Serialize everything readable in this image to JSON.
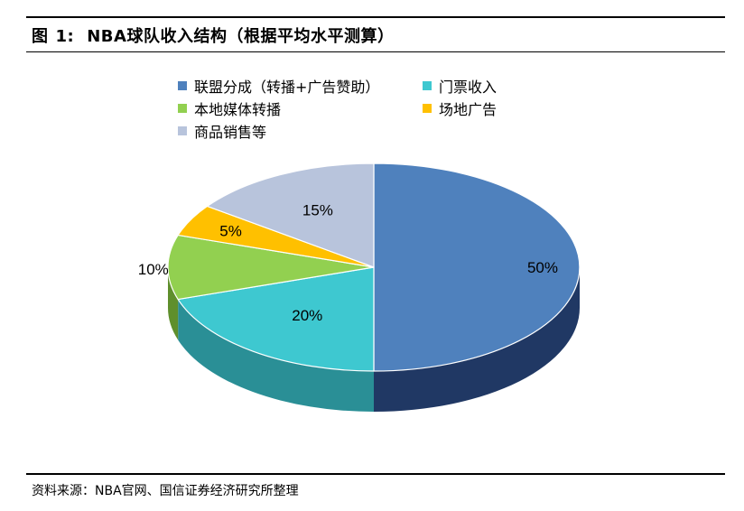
{
  "figure": {
    "label": "图",
    "number": "1:",
    "title": "NBA球队收入结构（根据平均水平测算）"
  },
  "source": "资料来源：NBA官网、国信证券经济研究所整理",
  "chart_data": {
    "type": "pie",
    "style": "3d",
    "legend_position": "top",
    "series": [
      {
        "name": "联盟分成（转播+广告赞助）",
        "value": 50,
        "label": "50%",
        "color": "#4f81bd",
        "side_color": "#203864"
      },
      {
        "name": "门票收入",
        "value": 20,
        "label": "20%",
        "color": "#3ec8d0",
        "side_color": "#2a8f96"
      },
      {
        "name": "本地媒体转播",
        "value": 10,
        "label": "10%",
        "color": "#92d050",
        "side_color": "#5f8f2c"
      },
      {
        "name": "场地广告",
        "value": 5,
        "label": "5%",
        "color": "#ffc000",
        "side_color": "#b38600"
      },
      {
        "name": "商品销售等",
        "value": 15,
        "label": "15%",
        "color": "#b8c4dc",
        "side_color": "#7d8aa6"
      }
    ]
  }
}
